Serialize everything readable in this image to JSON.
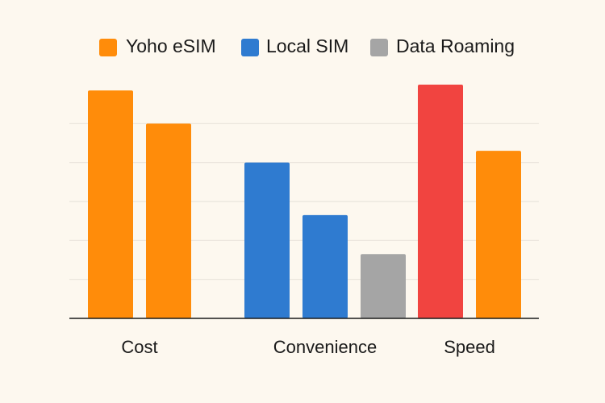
{
  "chart_data": {
    "type": "bar",
    "title": "",
    "xlabel": "",
    "ylabel": "",
    "ylim": [
      0,
      120
    ],
    "grid": true,
    "y_tick_labels_shown": false,
    "legend": {
      "placement": "top-center",
      "entries": [
        {
          "label": "Yoho eSIM",
          "color": "#ff8c0a"
        },
        {
          "label": "Local SIM",
          "color": "#2f7bd0"
        },
        {
          "label": "Data Roaming",
          "color": "#a5a5a5"
        }
      ]
    },
    "categories": [
      {
        "label": "Cost",
        "bars": [
          {
            "value": 117,
            "color": "#ff8c0a"
          },
          {
            "value": 100,
            "color": "#ff8c0a"
          }
        ]
      },
      {
        "label": "Convenience",
        "bars": [
          {
            "value": 80,
            "color": "#2f7bd0"
          },
          {
            "value": 53,
            "color": "#2f7bd0"
          },
          {
            "value": 33,
            "color": "#a5a5a5"
          }
        ]
      },
      {
        "label": "Speed",
        "bars": [
          {
            "value": 120,
            "color": "#f14440"
          },
          {
            "value": 86,
            "color": "#ff8c0a"
          }
        ]
      }
    ]
  }
}
